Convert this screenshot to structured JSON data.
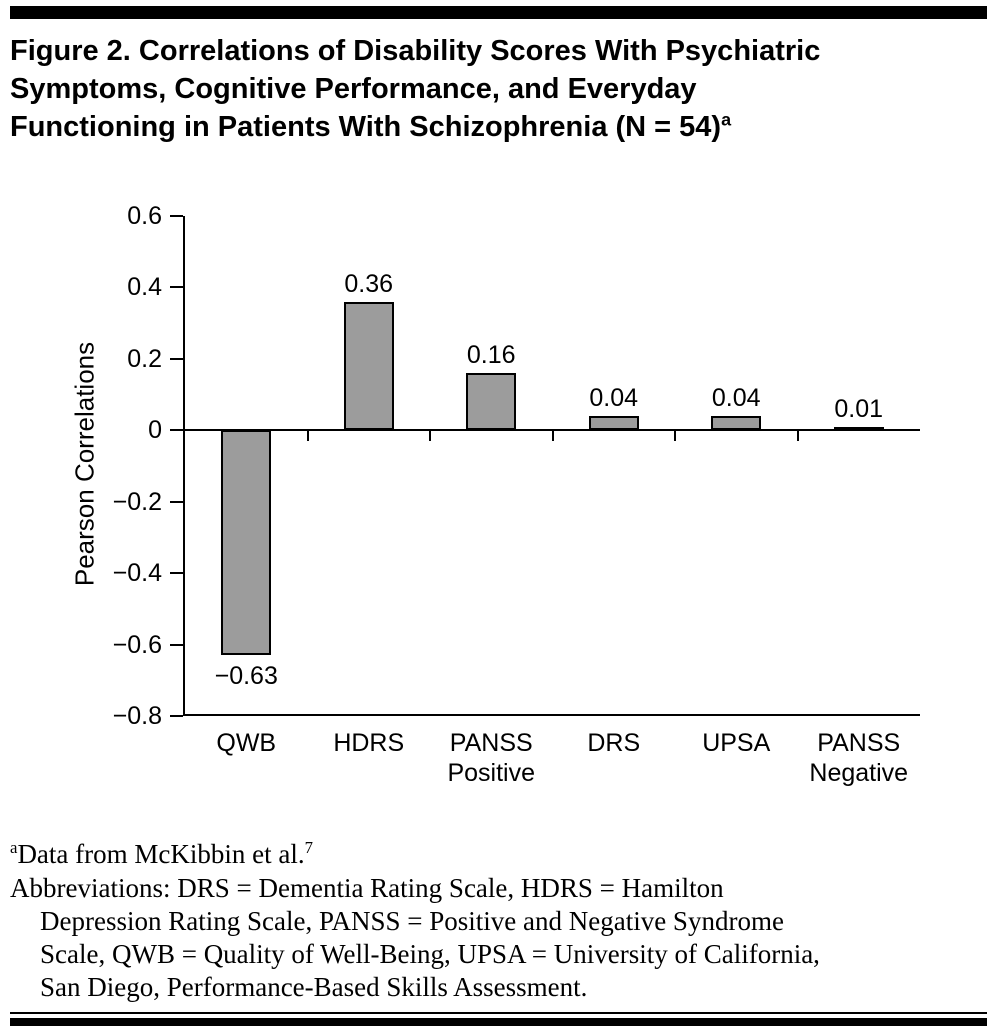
{
  "title": {
    "lines": [
      "Figure 2. Correlations of Disability Scores With Psychiatric",
      "Symptoms, Cognitive Performance, and Everyday"
    ],
    "last_line": "Functioning in Patients With Schizophrenia (N = 54)",
    "superscript": "a"
  },
  "chart_data": {
    "type": "bar",
    "categories": [
      "QWB",
      "HDRS",
      "PANSS\nPositive",
      "DRS",
      "UPSA",
      "PANSS\nNegative"
    ],
    "values": [
      -0.63,
      0.36,
      0.16,
      0.04,
      0.04,
      0.01
    ],
    "bar_labels": [
      "−0.63",
      "0.36",
      "0.16",
      "0.04",
      "0.04",
      "0.01"
    ],
    "title": "",
    "xlabel": "",
    "ylabel": "Pearson Correlations",
    "ylim": [
      -0.8,
      0.6
    ],
    "yticks": [
      0.6,
      0.4,
      0.2,
      0,
      -0.2,
      -0.4,
      -0.6,
      -0.8
    ],
    "ytick_labels": [
      "0.6",
      "0.4",
      "0.2",
      "0",
      "−0.2",
      "−0.4",
      "−0.6",
      "−0.8"
    ],
    "grid": false,
    "legend": "none",
    "bar_color": "#9c9c9c",
    "bar_border_color": "#000000",
    "axis_color": "#000000"
  },
  "footnotes": {
    "note_a": {
      "marker": "a",
      "text": "Data from McKibbin et al.",
      "reference": "7"
    },
    "abbreviation_lines": [
      "Abbreviations: DRS = Dementia Rating Scale, HDRS = Hamilton",
      "Depression Rating Scale, PANSS = Positive and Negative Syndrome",
      "Scale, QWB = Quality of Well-Being, UPSA = University of California,",
      "San Diego, Performance-Based Skills Assessment."
    ]
  }
}
